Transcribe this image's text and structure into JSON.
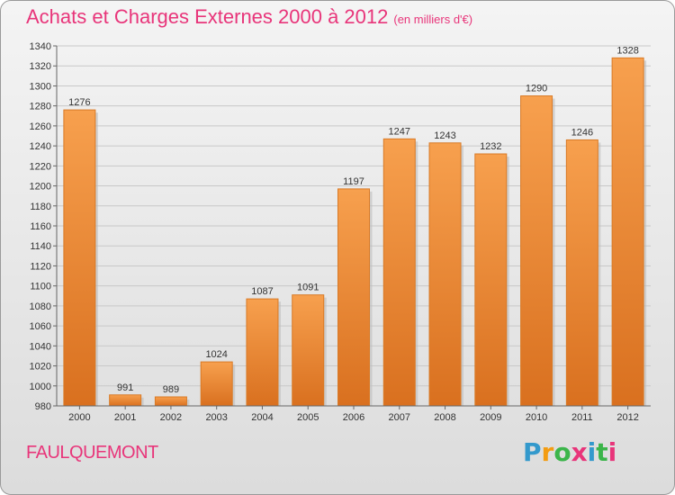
{
  "header": {
    "title": "Achats et Charges Externes 2000 à 2012",
    "unit": "(en milliers d'€)"
  },
  "footer": {
    "city": "FAULQUEMONT",
    "logo_letters": [
      "P",
      "r",
      "o",
      "x",
      "i",
      "t",
      "i"
    ],
    "logo_colors": [
      "#3399cc",
      "#f39c12",
      "#3bb54a",
      "#e8357a",
      "#3399cc",
      "#3bb54a",
      "#e8357a"
    ]
  },
  "colors": {
    "bar": "#f2913a",
    "bar_dark": "#c2611a",
    "title": "#e8357a"
  },
  "chart_data": {
    "type": "bar",
    "title": "Achats et Charges Externes 2000 à 2012",
    "xlabel": "",
    "ylabel": "",
    "categories": [
      "2000",
      "2001",
      "2002",
      "2003",
      "2004",
      "2005",
      "2006",
      "2007",
      "2008",
      "2009",
      "2010",
      "2011",
      "2012"
    ],
    "values": [
      1276,
      991,
      989,
      1024,
      1087,
      1091,
      1197,
      1247,
      1243,
      1232,
      1290,
      1246,
      1328
    ],
    "ylim": [
      980,
      1340
    ],
    "yticks": [
      980,
      1000,
      1020,
      1040,
      1060,
      1080,
      1100,
      1120,
      1140,
      1160,
      1180,
      1200,
      1220,
      1240,
      1260,
      1280,
      1300,
      1320,
      1340
    ],
    "grid": true,
    "legend": "none"
  }
}
